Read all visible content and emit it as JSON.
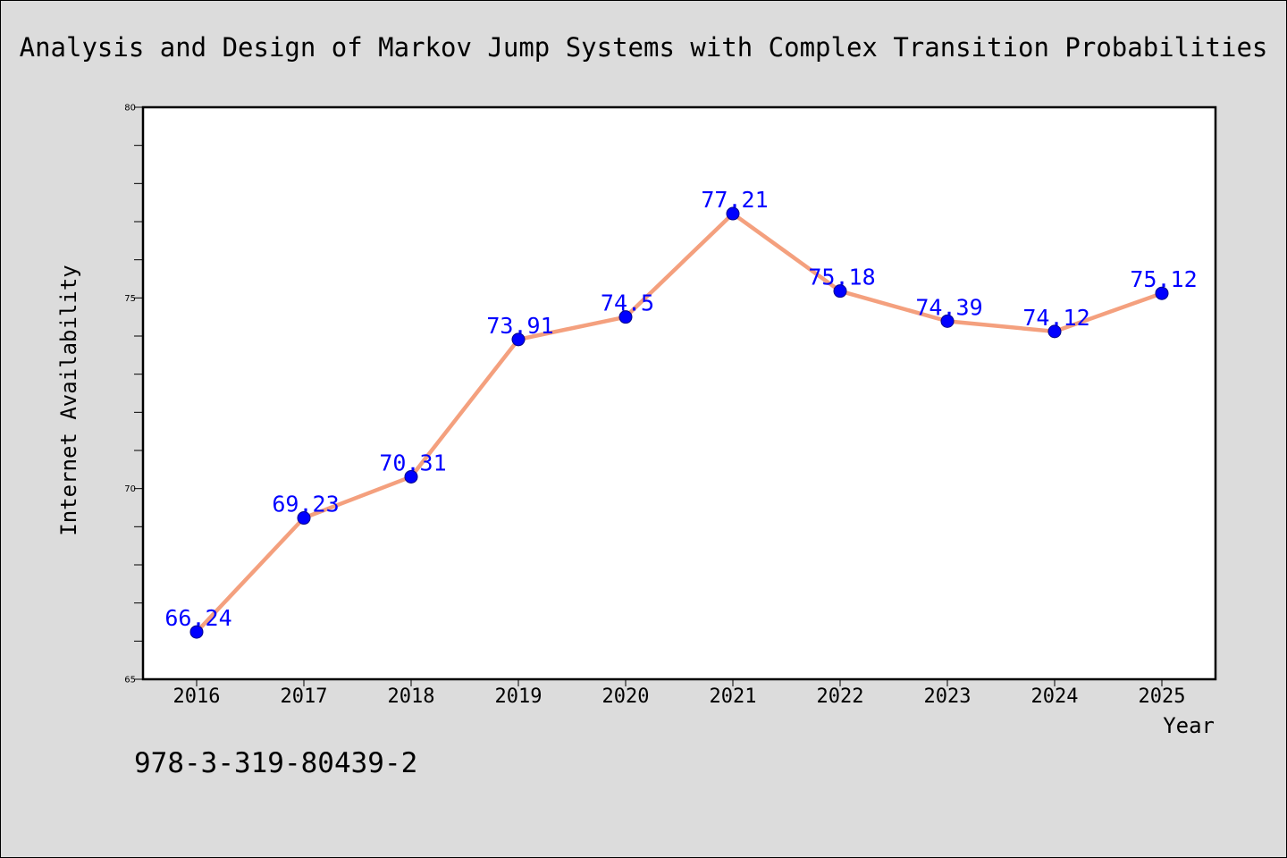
{
  "chart_data": {
    "type": "line",
    "title": "Analysis and Design of Markov Jump Systems with Complex Transition Probabilities",
    "xlabel": "Year",
    "ylabel": "Internet Availability",
    "categories": [
      "2016",
      "2017",
      "2018",
      "2019",
      "2020",
      "2021",
      "2022",
      "2023",
      "2024",
      "2025"
    ],
    "series": [
      {
        "values": [
          66.24,
          69.23,
          70.31,
          73.91,
          74.5,
          77.21,
          75.18,
          74.39,
          74.12,
          75.12
        ],
        "data_labels": [
          "66.24",
          "69.23",
          "70.31",
          "73.91",
          "74.5",
          "77.21",
          "75.18",
          "74.39",
          "74.12",
          "75.12"
        ]
      }
    ],
    "ylim": [
      65,
      80
    ],
    "y_ticks": [
      "65",
      "70",
      "75",
      "80"
    ],
    "y_minor_step": 1,
    "grid": false,
    "legend": "none",
    "colors": {
      "line": "#f4a07e",
      "marker": "#0000ff",
      "marker_edge": "#00008b",
      "data_label": "#0000ff",
      "plot_background": "#ffffff",
      "figure_background": "#dcdcdc"
    }
  },
  "footer": {
    "isbn": "978-3-319-80439-2"
  }
}
